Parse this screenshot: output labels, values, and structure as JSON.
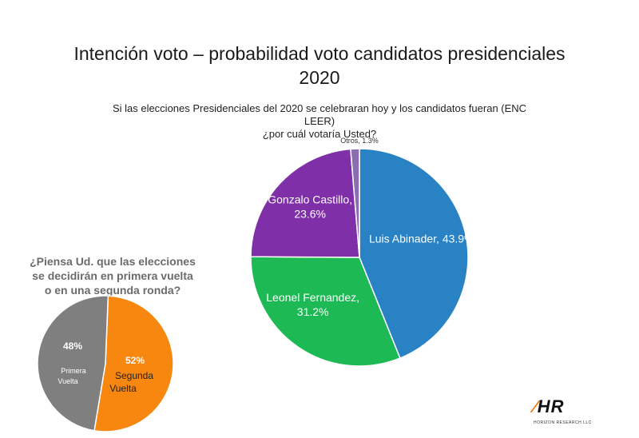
{
  "title_line1": "Intención voto – probabilidad voto  candidatos presidenciales",
  "title_line2": "2020",
  "subtitle_line1": "Si las elecciones Presidenciales del 2020 se celebraran hoy y los  candidatos fueran (ENC LEER)",
  "subtitle_line2": "¿por cuál votaría Usted?",
  "question_line1": "¿Piensa Ud. que las elecciones",
  "question_line2": "se decidirán en  primera vuelta",
  "question_line3": "o en una segunda ronda?",
  "logo": {
    "mark": "HR",
    "sub": "HORIZON RESEARCH LLC"
  },
  "chart_data": [
    {
      "type": "pie",
      "slices": [
        {
          "label": "Luis Abinader",
          "value": 43.9,
          "display": "Luis Abinader, 43.9%",
          "color": "#2882c4"
        },
        {
          "label": "Leonel Fernandez",
          "value": 31.2,
          "display_line1": "Leonel Fernandez,",
          "display_line2": "31.2%",
          "color": "#1db954"
        },
        {
          "label": "Gonzalo Castillo",
          "value": 23.6,
          "display_line1": "Gonzalo Castillo,",
          "display_line2": "23.6%",
          "color": "#7f2fa8"
        },
        {
          "label": "Otros",
          "value": 1.3,
          "display": "Otros, 1.3%",
          "color": "#8a6fb0"
        }
      ]
    },
    {
      "type": "pie",
      "slices": [
        {
          "label": "Segunda Vuelta",
          "value": 52,
          "percent_label": "52%",
          "name_line1": "Segunda",
          "name_line2": "Vuelta",
          "color": "#f7870f"
        },
        {
          "label": "Primera Vuelta",
          "value": 48,
          "percent_label": "48%",
          "name_line1": "Primera",
          "name_line2": "Vuelta",
          "color": "#7f7f7f"
        }
      ]
    }
  ]
}
